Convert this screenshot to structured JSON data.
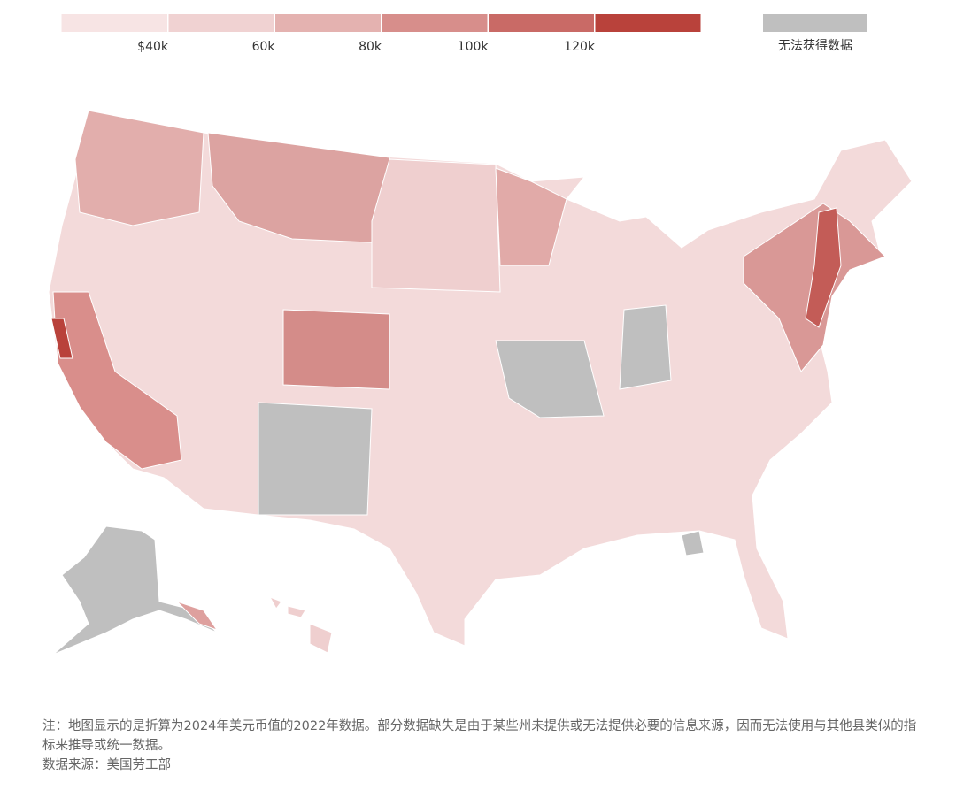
{
  "legend": {
    "colors": [
      "#f7e4e4",
      "#f0d2d2",
      "#e4b2b0",
      "#d78e8b",
      "#c96a66",
      "#b9423b"
    ],
    "ticks": [
      {
        "value": 40000,
        "label": "$40k"
      },
      {
        "value": 60000,
        "label": "60k"
      },
      {
        "value": 80000,
        "label": "80k"
      },
      {
        "value": 100000,
        "label": "100k"
      },
      {
        "value": 120000,
        "label": "120k"
      }
    ],
    "no_data": {
      "color": "#bfbfbf",
      "label": "无法获得数据"
    }
  },
  "notes": {
    "note": "注：地图显示的是折算为2024年美元币值的2022年数据。部分数据缺失是由于某些州未提供或无法提供必要的信息来源，因而无法使用与其他县类似的指标来推导或统一数据。",
    "source": "数据来源：美国劳工部"
  }
}
